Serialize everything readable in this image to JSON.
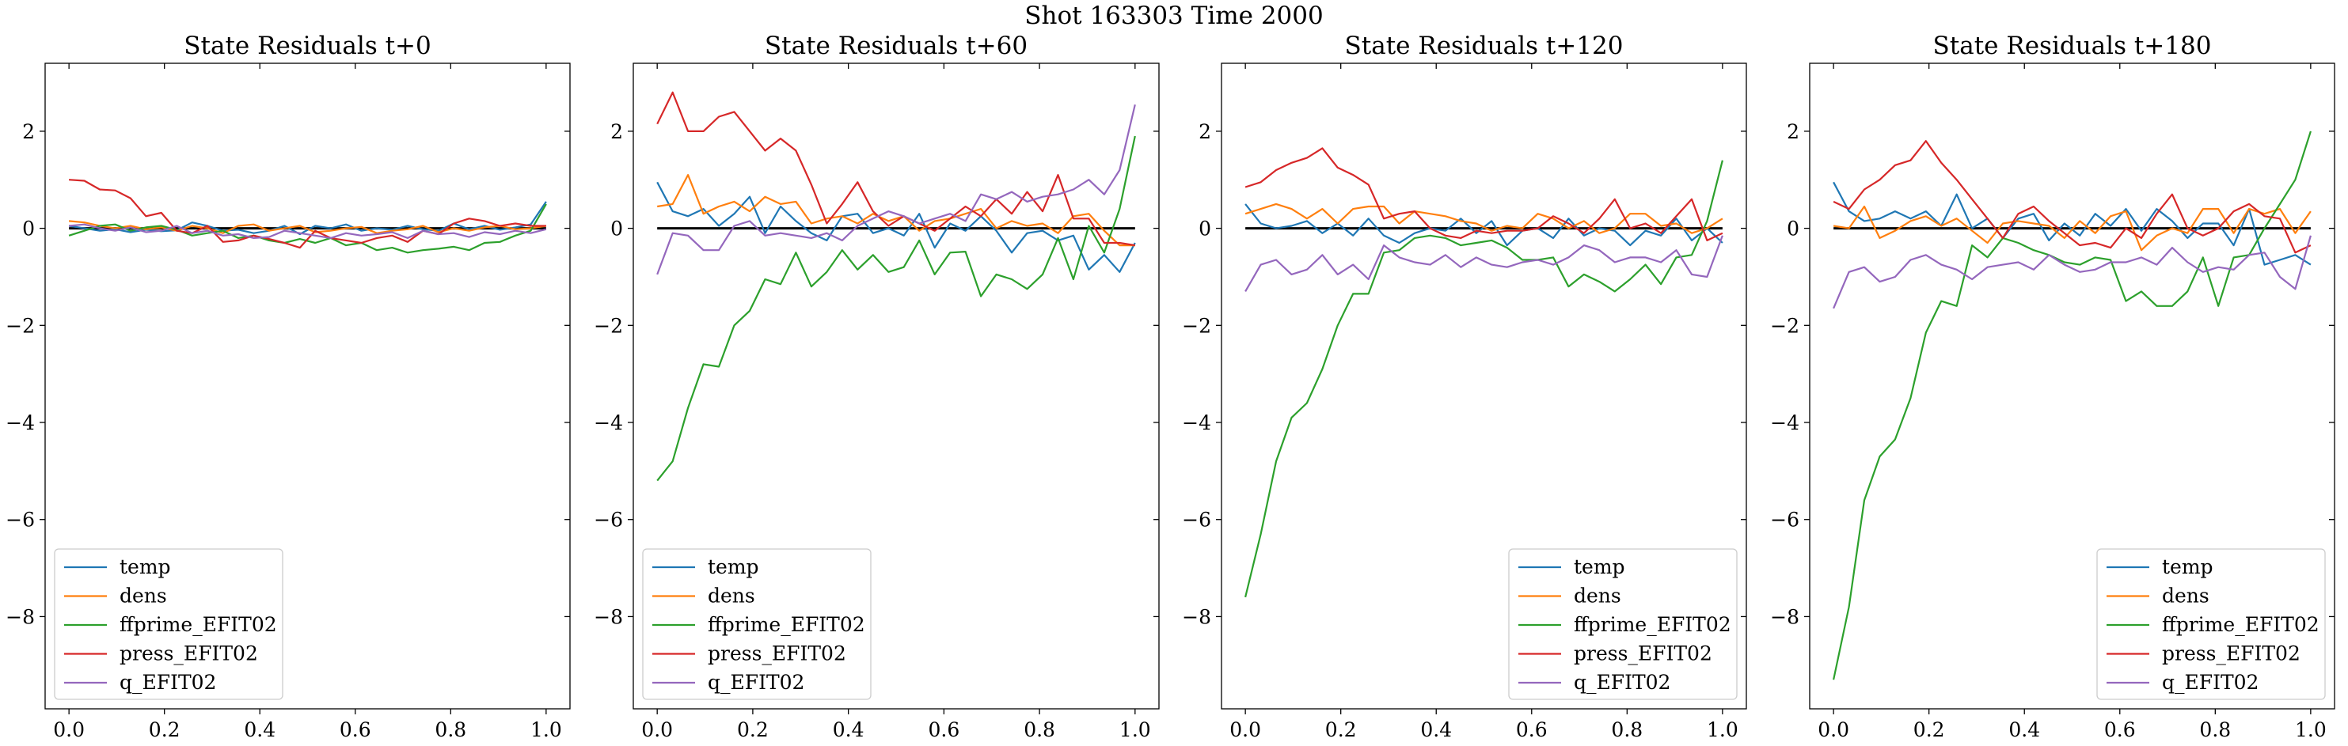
{
  "suptitle": "Shot 163303   Time 2000",
  "colors": {
    "temp": "#1f77b4",
    "dens": "#ff7f0e",
    "ffprime_EFIT02": "#2ca02c",
    "press_EFIT02": "#d62728",
    "q_EFIT02": "#9467bd",
    "zero_line": "#000000"
  },
  "chart_data": [
    {
      "type": "line",
      "title": "State Residuals t+0",
      "xlabel": "",
      "ylabel": "",
      "xlim": [
        -0.05,
        1.05
      ],
      "ylim": [
        -9.9,
        3.4
      ],
      "xticks": [
        "0.0",
        "0.2",
        "0.4",
        "0.6",
        "0.8",
        "1.0"
      ],
      "yticks": [
        "2",
        "0",
        "−2",
        "−4",
        "−6",
        "−8"
      ],
      "legend_loc": "lower left",
      "series": [
        {
          "name": "temp",
          "values": [
            0.05,
            0.0,
            -0.05,
            -0.02,
            -0.08,
            -0.03,
            -0.06,
            -0.04,
            0.12,
            0.05,
            -0.05,
            -0.03,
            -0.1,
            -0.05,
            0.05,
            -0.12,
            0.05,
            0.0,
            0.08,
            -0.05,
            0.0,
            -0.03,
            0.05,
            -0.02,
            -0.05,
            0.1,
            -0.02,
            0.05,
            -0.03,
            0.02,
            0.08,
            0.55
          ]
        },
        {
          "name": "dens",
          "values": [
            0.15,
            0.12,
            0.05,
            0.0,
            0.05,
            -0.02,
            0.02,
            -0.05,
            0.05,
            0.0,
            -0.1,
            0.05,
            0.08,
            -0.05,
            0.0,
            0.05,
            -0.08,
            -0.05,
            0.0,
            0.03,
            -0.1,
            -0.05,
            -0.02,
            0.05,
            -0.08,
            0.0,
            -0.05,
            0.02,
            0.05,
            -0.02,
            0.0,
            0.05
          ]
        },
        {
          "name": "ffprime_EFIT02",
          "values": [
            -0.15,
            -0.05,
            0.05,
            0.08,
            -0.05,
            0.02,
            0.05,
            -0.03,
            -0.15,
            -0.1,
            -0.05,
            -0.2,
            -0.15,
            -0.25,
            -0.3,
            -0.22,
            -0.3,
            -0.2,
            -0.35,
            -0.3,
            -0.45,
            -0.4,
            -0.5,
            -0.45,
            -0.42,
            -0.38,
            -0.45,
            -0.3,
            -0.28,
            -0.15,
            -0.05,
            0.5
          ]
        },
        {
          "name": "press_EFIT02",
          "values": [
            1.0,
            0.98,
            0.8,
            0.78,
            0.62,
            0.25,
            0.32,
            -0.05,
            -0.1,
            0.05,
            -0.28,
            -0.25,
            -0.15,
            -0.22,
            -0.3,
            -0.4,
            -0.05,
            -0.2,
            -0.25,
            -0.3,
            -0.2,
            -0.15,
            -0.28,
            -0.05,
            -0.12,
            0.1,
            0.2,
            0.15,
            0.05,
            0.1,
            0.05,
            0.05
          ]
        },
        {
          "name": "q_EFIT02",
          "values": [
            0.05,
            0.08,
            0.0,
            -0.05,
            0.02,
            -0.08,
            -0.05,
            0.05,
            -0.1,
            -0.05,
            -0.15,
            -0.12,
            -0.2,
            -0.18,
            -0.05,
            -0.1,
            -0.15,
            -0.2,
            -0.1,
            -0.15,
            -0.12,
            -0.08,
            -0.2,
            -0.05,
            -0.12,
            -0.1,
            -0.18,
            -0.08,
            -0.12,
            -0.05,
            -0.1,
            -0.02
          ]
        }
      ]
    },
    {
      "type": "line",
      "title": "State Residuals t+60",
      "xlabel": "",
      "ylabel": "",
      "xlim": [
        -0.05,
        1.05
      ],
      "ylim": [
        -9.9,
        3.4
      ],
      "xticks": [
        "0.0",
        "0.2",
        "0.4",
        "0.6",
        "0.8",
        "1.0"
      ],
      "yticks": [
        "2",
        "0",
        "−2",
        "−4",
        "−6",
        "−8"
      ],
      "legend_loc": "lower left",
      "series": [
        {
          "name": "temp",
          "values": [
            0.95,
            0.35,
            0.25,
            0.4,
            0.05,
            0.3,
            0.65,
            -0.1,
            0.45,
            0.15,
            -0.1,
            -0.25,
            0.25,
            0.3,
            -0.1,
            0.0,
            -0.15,
            0.3,
            -0.4,
            0.1,
            -0.05,
            0.25,
            -0.05,
            -0.5,
            -0.1,
            -0.05,
            -0.25,
            -0.15,
            -0.85,
            -0.55,
            -0.9,
            -0.3
          ]
        },
        {
          "name": "dens",
          "values": [
            0.45,
            0.5,
            1.1,
            0.3,
            0.45,
            0.55,
            0.35,
            0.65,
            0.5,
            0.55,
            0.1,
            0.2,
            0.25,
            0.1,
            0.3,
            0.15,
            0.25,
            -0.05,
            0.15,
            0.2,
            0.3,
            0.4,
            0.0,
            0.15,
            0.05,
            0.1,
            -0.1,
            0.25,
            0.3,
            -0.05,
            -0.35,
            -0.35
          ]
        },
        {
          "name": "ffprime_EFIT02",
          "values": [
            -5.2,
            -4.8,
            -3.7,
            -2.8,
            -2.85,
            -2.0,
            -1.7,
            -1.05,
            -1.15,
            -0.5,
            -1.2,
            -0.9,
            -0.45,
            -0.85,
            -0.55,
            -0.9,
            -0.8,
            -0.25,
            -0.95,
            -0.5,
            -0.48,
            -1.4,
            -0.95,
            -1.05,
            -1.25,
            -0.95,
            -0.2,
            -1.05,
            0.05,
            -0.5,
            0.4,
            1.9
          ]
        },
        {
          "name": "press_EFIT02",
          "values": [
            2.15,
            2.8,
            2.0,
            2.0,
            2.3,
            2.4,
            2.0,
            1.6,
            1.85,
            1.6,
            0.9,
            0.1,
            0.5,
            0.95,
            0.35,
            0.05,
            0.25,
            0.1,
            -0.05,
            0.2,
            0.45,
            0.25,
            0.6,
            0.3,
            0.75,
            0.35,
            1.1,
            0.2,
            0.2,
            -0.3,
            -0.3,
            -0.35
          ]
        },
        {
          "name": "q_EFIT02",
          "values": [
            -0.95,
            -0.1,
            -0.15,
            -0.45,
            -0.45,
            0.05,
            0.15,
            -0.15,
            -0.1,
            -0.15,
            -0.2,
            -0.1,
            -0.25,
            0.05,
            0.2,
            0.35,
            0.25,
            0.1,
            0.2,
            0.3,
            0.15,
            0.7,
            0.6,
            0.75,
            0.55,
            0.65,
            0.7,
            0.8,
            1.0,
            0.7,
            1.2,
            2.55
          ]
        }
      ]
    },
    {
      "type": "line",
      "title": "State Residuals t+120",
      "xlabel": "",
      "ylabel": "",
      "xlim": [
        -0.05,
        1.05
      ],
      "ylim": [
        -9.9,
        3.4
      ],
      "xticks": [
        "0.0",
        "0.2",
        "0.4",
        "0.6",
        "0.8",
        "1.0"
      ],
      "yticks": [
        "2",
        "0",
        "−2",
        "−4",
        "−6",
        "−8"
      ],
      "legend_loc": "lower right",
      "series": [
        {
          "name": "temp",
          "values": [
            0.5,
            0.1,
            0.0,
            0.05,
            0.15,
            -0.1,
            0.1,
            -0.15,
            0.2,
            -0.15,
            -0.3,
            -0.1,
            0.0,
            -0.05,
            0.2,
            -0.1,
            0.15,
            -0.35,
            -0.05,
            0.0,
            -0.2,
            0.2,
            -0.15,
            0.0,
            -0.05,
            -0.35,
            -0.05,
            -0.15,
            0.2,
            -0.25,
            0.0,
            -0.3
          ]
        },
        {
          "name": "dens",
          "values": [
            0.3,
            0.4,
            0.5,
            0.4,
            0.2,
            0.4,
            0.1,
            0.4,
            0.45,
            0.45,
            0.1,
            0.35,
            0.3,
            0.25,
            0.15,
            0.1,
            -0.05,
            0.05,
            0.0,
            0.3,
            0.2,
            0.0,
            0.15,
            -0.1,
            0.0,
            0.3,
            0.3,
            0.05,
            0.1,
            -0.1,
            0.0,
            0.2
          ]
        },
        {
          "name": "ffprime_EFIT02",
          "values": [
            -7.6,
            -6.3,
            -4.8,
            -3.9,
            -3.6,
            -2.9,
            -2.0,
            -1.35,
            -1.35,
            -0.5,
            -0.45,
            -0.2,
            -0.15,
            -0.2,
            -0.35,
            -0.3,
            -0.25,
            -0.4,
            -0.65,
            -0.65,
            -0.6,
            -1.2,
            -0.95,
            -1.1,
            -1.3,
            -1.05,
            -0.75,
            -1.15,
            -0.6,
            -0.55,
            0.15,
            1.4
          ]
        },
        {
          "name": "press_EFIT02",
          "values": [
            0.85,
            0.95,
            1.2,
            1.35,
            1.45,
            1.65,
            1.25,
            1.1,
            0.9,
            0.2,
            0.3,
            0.35,
            0.0,
            -0.15,
            -0.2,
            -0.05,
            -0.1,
            -0.05,
            -0.05,
            0.0,
            0.25,
            0.1,
            -0.1,
            0.2,
            0.6,
            0.0,
            0.1,
            -0.1,
            0.25,
            0.6,
            -0.25,
            -0.1
          ]
        },
        {
          "name": "q_EFIT02",
          "values": [
            -1.3,
            -0.75,
            -0.65,
            -0.95,
            -0.85,
            -0.55,
            -0.95,
            -0.75,
            -1.05,
            -0.35,
            -0.6,
            -0.7,
            -0.75,
            -0.55,
            -0.8,
            -0.6,
            -0.75,
            -0.8,
            -0.7,
            -0.65,
            -0.75,
            -0.6,
            -0.35,
            -0.45,
            -0.7,
            -0.6,
            -0.6,
            -0.7,
            -0.45,
            -0.95,
            -1.0,
            -0.15
          ]
        }
      ]
    },
    {
      "type": "line",
      "title": "State Residuals t+180",
      "xlabel": "",
      "ylabel": "",
      "xlim": [
        -0.05,
        1.05
      ],
      "ylim": [
        -9.9,
        3.4
      ],
      "xticks": [
        "0.0",
        "0.2",
        "0.4",
        "0.6",
        "0.8",
        "1.0"
      ],
      "yticks": [
        "2",
        "0",
        "−2",
        "−4",
        "−6",
        "−8"
      ],
      "legend_loc": "lower right",
      "series": [
        {
          "name": "temp",
          "values": [
            0.95,
            0.35,
            0.15,
            0.2,
            0.35,
            0.2,
            0.35,
            0.05,
            0.7,
            0.0,
            0.2,
            -0.2,
            0.2,
            0.3,
            -0.25,
            0.1,
            -0.15,
            0.3,
            0.05,
            0.4,
            -0.05,
            0.4,
            0.15,
            -0.2,
            0.1,
            0.1,
            -0.35,
            0.4,
            -0.75,
            -0.65,
            -0.55,
            -0.75
          ]
        },
        {
          "name": "dens",
          "values": [
            0.05,
            0.0,
            0.45,
            -0.2,
            -0.05,
            0.15,
            0.25,
            0.05,
            0.2,
            -0.05,
            -0.3,
            0.1,
            0.15,
            0.1,
            0.05,
            -0.2,
            0.15,
            -0.1,
            0.25,
            0.35,
            -0.45,
            -0.15,
            0.0,
            -0.1,
            0.4,
            0.4,
            -0.1,
            0.4,
            0.3,
            0.4,
            -0.1,
            0.35
          ]
        },
        {
          "name": "ffprime_EFIT02",
          "values": [
            -9.3,
            -7.8,
            -5.6,
            -4.7,
            -4.35,
            -3.5,
            -2.15,
            -1.5,
            -1.6,
            -0.35,
            -0.6,
            -0.2,
            -0.3,
            -0.45,
            -0.55,
            -0.7,
            -0.75,
            -0.6,
            -0.65,
            -1.5,
            -1.3,
            -1.6,
            -1.6,
            -1.3,
            -0.6,
            -1.6,
            -0.6,
            -0.55,
            0.0,
            0.5,
            1.0,
            2.0
          ]
        },
        {
          "name": "press_EFIT02",
          "values": [
            0.55,
            0.4,
            0.8,
            1.0,
            1.3,
            1.4,
            1.8,
            1.35,
            1.0,
            0.6,
            0.2,
            -0.2,
            0.3,
            0.45,
            0.15,
            -0.1,
            -0.35,
            -0.3,
            -0.4,
            0.0,
            -0.2,
            0.3,
            0.7,
            0.0,
            -0.15,
            0.0,
            0.35,
            0.5,
            0.25,
            0.2,
            -0.5,
            -0.35
          ]
        },
        {
          "name": "q_EFIT02",
          "values": [
            -1.65,
            -0.9,
            -0.8,
            -1.1,
            -1.0,
            -0.65,
            -0.55,
            -0.75,
            -0.85,
            -1.05,
            -0.8,
            -0.75,
            -0.7,
            -0.85,
            -0.55,
            -0.75,
            -0.9,
            -0.85,
            -0.7,
            -0.7,
            -0.6,
            -0.75,
            -0.4,
            -0.7,
            -0.9,
            -0.8,
            -0.85,
            -0.55,
            -0.5,
            -1.0,
            -1.25,
            -0.15
          ]
        }
      ]
    }
  ]
}
